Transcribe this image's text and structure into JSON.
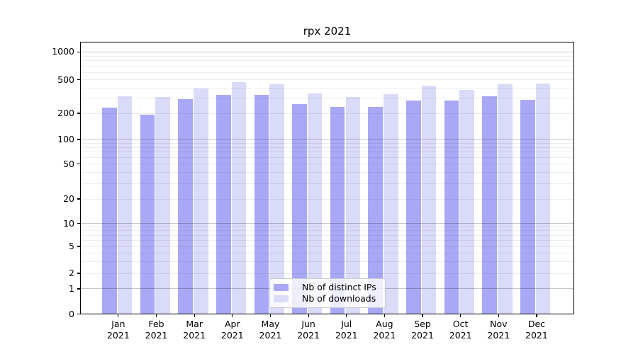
{
  "chart_data": {
    "type": "bar",
    "title": "rpx 2021",
    "y_scale": "symlog",
    "grid": "both",
    "legend_position": "lower center",
    "categories": [
      "Jan",
      "Feb",
      "Mar",
      "Apr",
      "May",
      "Jun",
      "Jul",
      "Aug",
      "Sep",
      "Oct",
      "Nov",
      "Dec"
    ],
    "x_year_suffix": "2021",
    "y_tick_labels": [
      "0",
      "1",
      "2",
      "5",
      "10",
      "20",
      "50",
      "100",
      "200",
      "500",
      "1000"
    ],
    "ylim": [
      0,
      1280
    ],
    "series": [
      {
        "name": "Nb of distinct IPs",
        "color": "#a8a8f6",
        "values": [
          232,
          193,
          295,
          333,
          330,
          255,
          239,
          239,
          282,
          282,
          320,
          288
        ]
      },
      {
        "name": "Nb of downloads",
        "color": "#dadaf9",
        "values": [
          318,
          310,
          392,
          463,
          438,
          341,
          310,
          335,
          421,
          375,
          443,
          452
        ]
      }
    ],
    "major_grid_values": [
      1,
      10,
      100,
      1000
    ],
    "minor_grid_values": [
      2,
      3,
      4,
      5,
      6,
      7,
      8,
      9,
      20,
      30,
      40,
      50,
      60,
      70,
      80,
      90,
      200,
      300,
      400,
      500,
      600,
      700,
      800,
      900
    ],
    "colors": {
      "major_grid": "rgba(0,0,0,0.22)",
      "minor_grid": "rgba(0,0,0,0.07)",
      "axis": "#000000",
      "legend_border": "#cccccc"
    }
  }
}
